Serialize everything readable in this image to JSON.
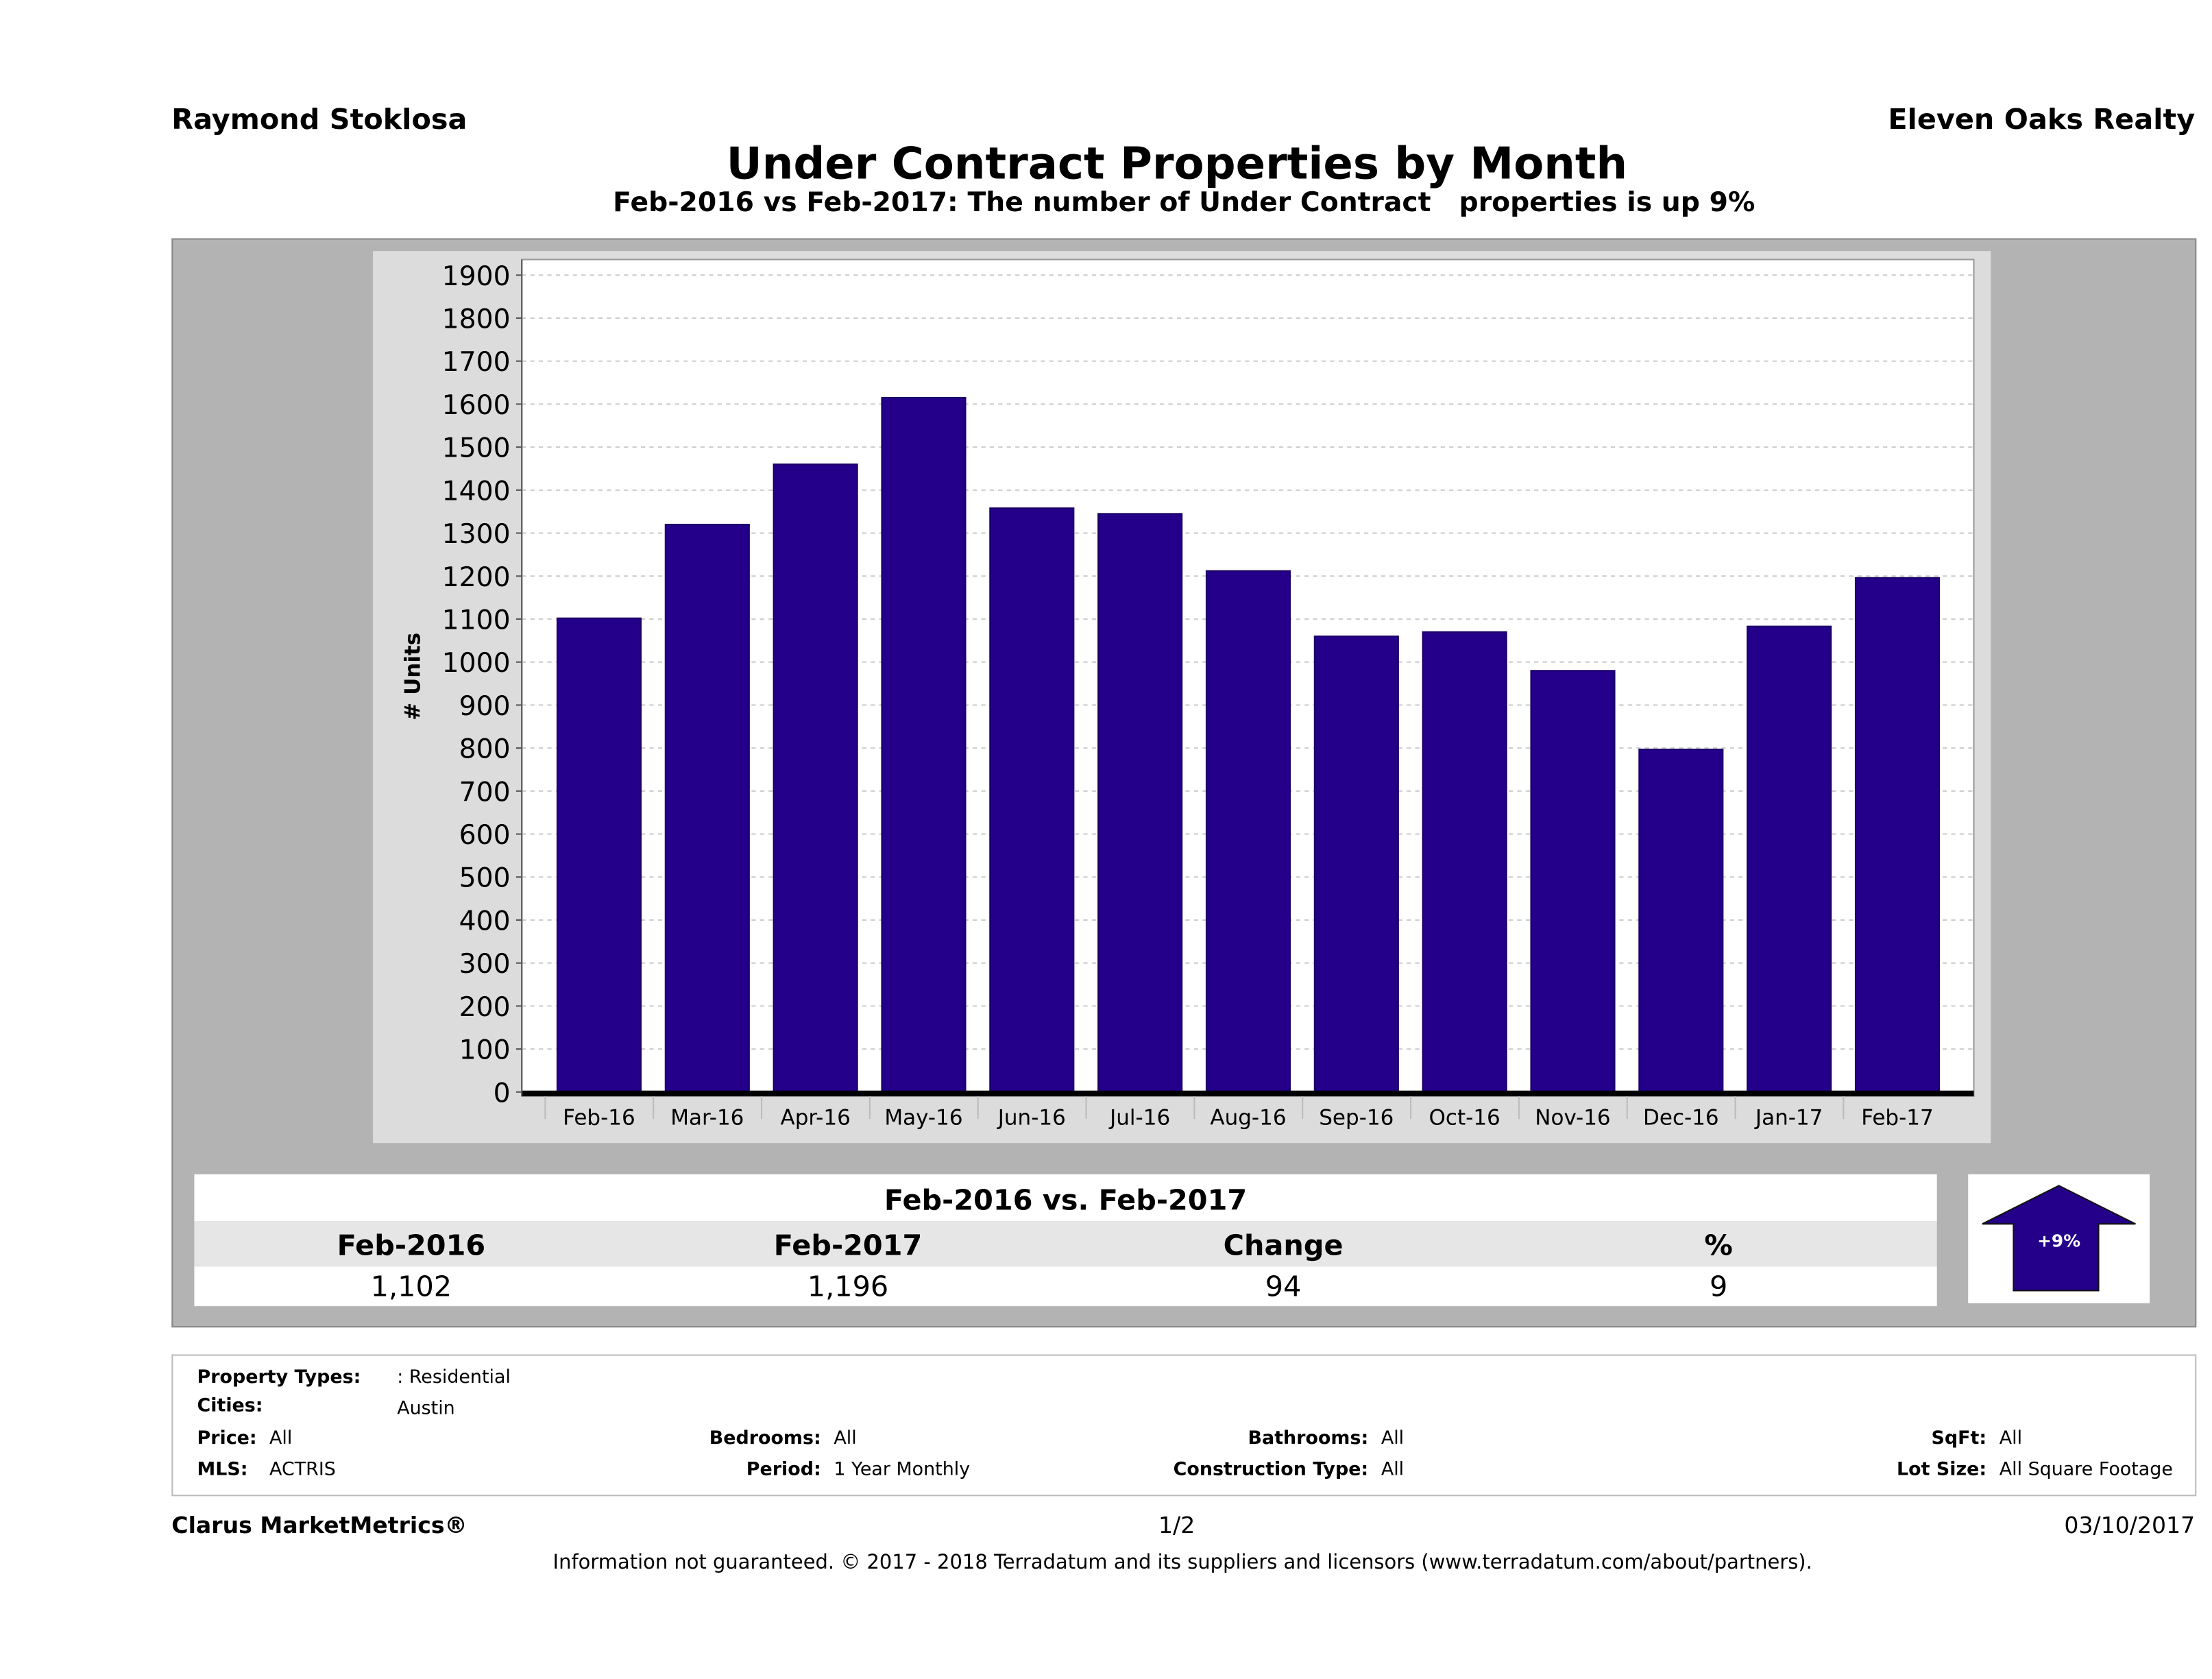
{
  "header": {
    "agent": "Raymond Stoklosa",
    "company": "Eleven Oaks Realty",
    "title": "Under Contract Properties by Month",
    "subtitle": "Feb-2016 vs Feb-2017: The number of Under Contract   properties is up 9%"
  },
  "chart_data": {
    "type": "bar",
    "title": "Under Contract Properties by Month",
    "xlabel": "",
    "ylabel": "# Units",
    "ylim": [
      0,
      1900
    ],
    "yticks": [
      0,
      100,
      200,
      300,
      400,
      500,
      600,
      700,
      800,
      900,
      1000,
      1100,
      1200,
      1300,
      1400,
      1500,
      1600,
      1700,
      1800,
      1900
    ],
    "grid": true,
    "bar_color": "#24008a",
    "categories": [
      "Feb-16",
      "Mar-16",
      "Apr-16",
      "May-16",
      "Jun-16",
      "Jul-16",
      "Aug-16",
      "Sep-16",
      "Oct-16",
      "Nov-16",
      "Dec-16",
      "Jan-17",
      "Feb-17"
    ],
    "values": [
      1102,
      1320,
      1460,
      1615,
      1358,
      1345,
      1212,
      1060,
      1070,
      980,
      797,
      1083,
      1196
    ]
  },
  "summary": {
    "title": "Feb-2016 vs. Feb-2017",
    "headers": [
      "Feb-2016",
      "Feb-2017",
      "Change",
      "%"
    ],
    "values": [
      "1,102",
      "1,196",
      "94",
      "9"
    ],
    "badge": "+9%",
    "badge_icon": "up-arrow-icon",
    "accent": "#24008a"
  },
  "filters": {
    "property_types_label": "Property Types:",
    "property_types": ": Residential",
    "cities_label": "Cities:",
    "cities": "Austin",
    "price_label": "Price:",
    "price": "All",
    "mls_label": "MLS:",
    "mls": "ACTRIS",
    "bedrooms_label": "Bedrooms:",
    "bedrooms": "All",
    "period_label": "Period:",
    "period": "1 Year Monthly",
    "bathrooms_label": "Bathrooms:",
    "bathrooms": "All",
    "construction_label": "Construction Type:",
    "construction": "All",
    "sqft_label": "SqFt:",
    "sqft": "All",
    "lot_label": "Lot Size:",
    "lot": "All Square Footage"
  },
  "footer": {
    "brand": "Clarus MarketMetrics®",
    "page": "1/2",
    "date": "03/10/2017",
    "disclaimer": "Information not guaranteed. © 2017 - 2018 Terradatum and its suppliers and licensors (www.terradatum.com/about/partners)."
  }
}
